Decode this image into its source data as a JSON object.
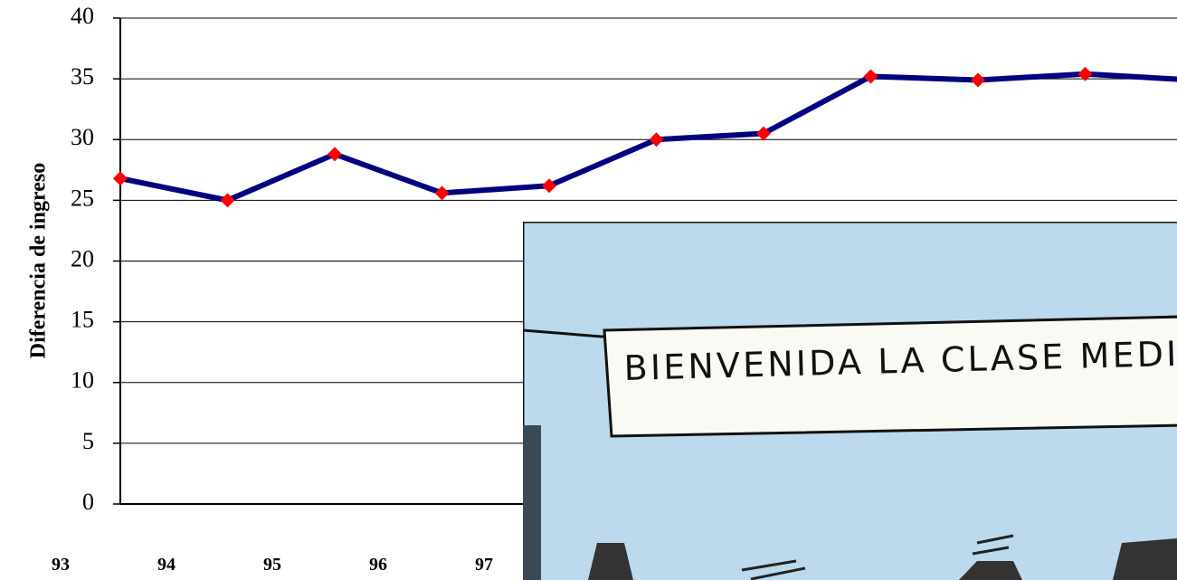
{
  "chart_data": {
    "type": "line",
    "y_label": "Diferencia de ingreso",
    "categories": [
      "93",
      "94",
      "95",
      "96",
      "97",
      null,
      null,
      null,
      null,
      null,
      null
    ],
    "series": [
      {
        "color": "#000080",
        "marker_color": "#ff0000",
        "values": [
          26.8,
          25.0,
          28.8,
          25.6,
          26.2,
          30.0,
          30.5,
          35.2,
          34.9,
          35.4,
          34.9
        ]
      }
    ],
    "ylim": [
      0,
      40
    ],
    "yticks": [
      0,
      5,
      10,
      15,
      20,
      25,
      30,
      35,
      40
    ],
    "grid": true
  },
  "cartoon": {
    "banner": "BIENVENIDA LA CLASE MEDIA"
  }
}
